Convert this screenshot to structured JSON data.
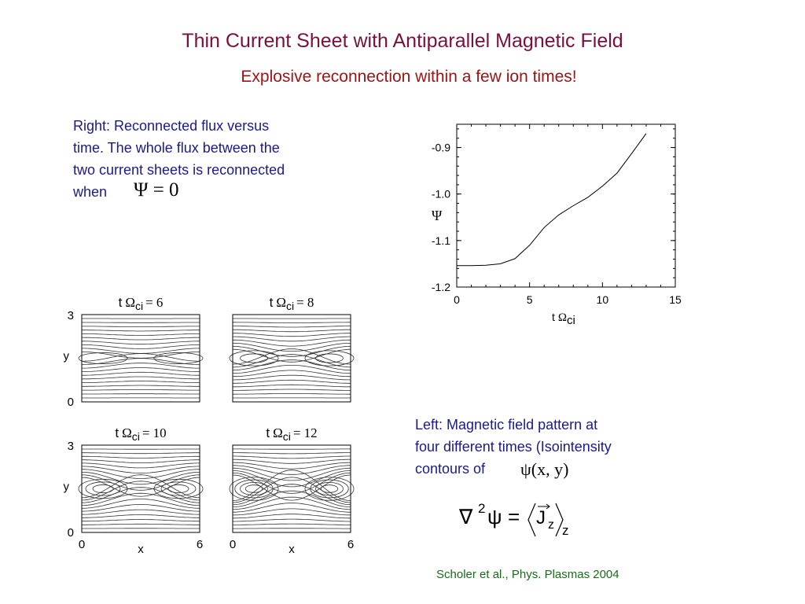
{
  "slide": {
    "title": "Thin Current Sheet with Antiparallel Magnetic Field",
    "subtitle": "Explosive reconnection within a few ion times!",
    "right_text": {
      "lines": [
        "Right: Reconnected flux versus",
        "time. The whole flux between the",
        "two current sheets is reconnected",
        "when"
      ],
      "equation": "Ψ = 0"
    },
    "left_text": {
      "lines": [
        "Left: Magnetic field pattern at",
        "four different times (Isointensity",
        "contours of"
      ],
      "equation": "ψ(x, y)"
    },
    "poisson": {
      "lhs": "∇",
      "power": "2",
      "psi": "ψ",
      "eq": "=",
      "J": "J",
      "jsub": "z",
      "outsub": "z"
    },
    "citation": "Scholer et al., Phys. Plasmas 2004"
  },
  "contour_panels": [
    {
      "t_label": "t",
      "omega": "Ω",
      "sub": "ci",
      "eq": "= 6",
      "time": 6
    },
    {
      "t_label": "t",
      "omega": "Ω",
      "sub": "ci",
      "eq": "= 8",
      "time": 8
    },
    {
      "t_label": "t",
      "omega": "Ω",
      "sub": "ci",
      "eq": "= 10",
      "time": 10
    },
    {
      "t_label": "t",
      "omega": "Ω",
      "sub": "ci",
      "eq": "= 12",
      "time": 12
    }
  ],
  "contour_axes": {
    "y_label": "y",
    "x_label": "x",
    "y_ticks": [
      "3",
      "0"
    ],
    "x_ticks": [
      "0",
      "6"
    ]
  },
  "chart_data": {
    "type": "line",
    "series": [
      {
        "x": [
          0,
          1,
          2,
          3,
          4,
          5,
          6,
          7,
          8,
          9,
          10,
          11,
          12,
          13
        ],
        "y": [
          -1.154,
          -1.154,
          -1.153,
          -1.15,
          -1.139,
          -1.11,
          -1.072,
          -1.045,
          -1.025,
          -1.007,
          -0.983,
          -0.955,
          -0.913,
          -0.87
        ]
      }
    ],
    "xlim": [
      0,
      15
    ],
    "ylim": [
      -1.2,
      -0.85
    ],
    "x_ticks": [
      0,
      5,
      10,
      15
    ],
    "y_ticks": [
      -0.9,
      -1.0,
      -1.1,
      -1.2
    ],
    "x_tick_labels": [
      "0",
      "5",
      "10",
      "15"
    ],
    "y_tick_labels": [
      "-0.9",
      "-1.0",
      "-1.1",
      "-1.2"
    ],
    "ylabel": "Ψ",
    "xlabel": {
      "t": "t",
      "omega": "Ω",
      "sub": "ci"
    },
    "grid": false
  }
}
